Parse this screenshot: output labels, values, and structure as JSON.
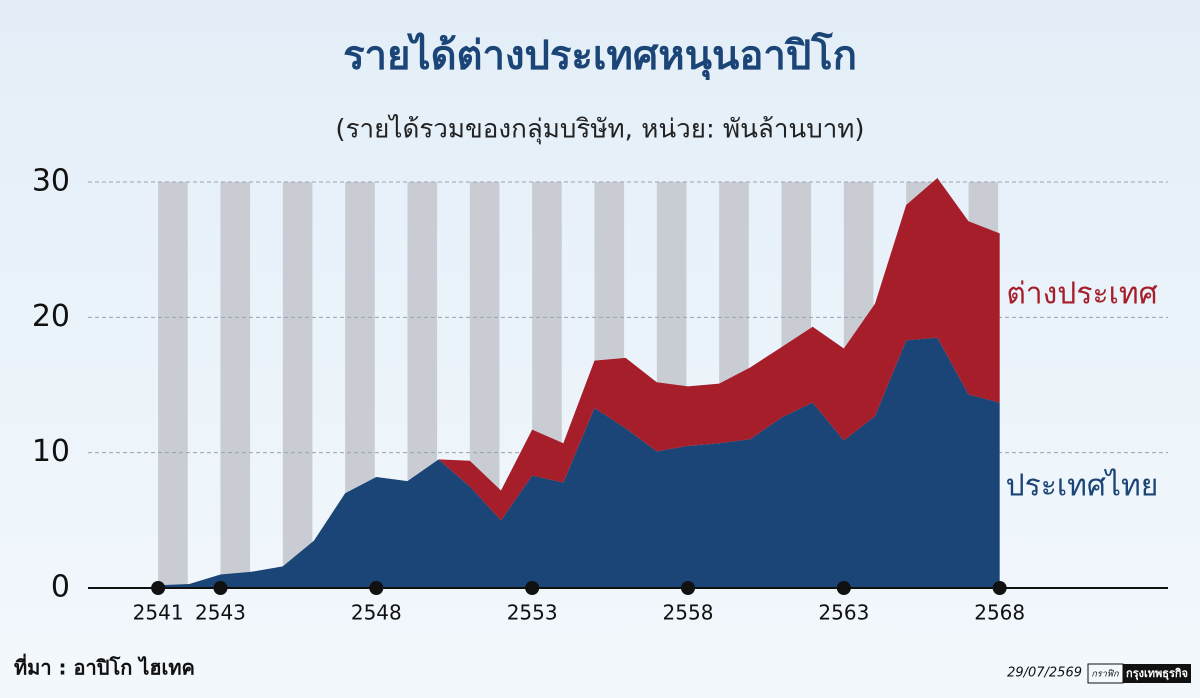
{
  "chart_data": {
    "type": "stacked_area",
    "title": "รายได้ต่างประเทศหนุนอาปิโก",
    "subtitle": "(รายได้รวมของกลุ่มบริษัท, หน่วย: พันล้านบาท)",
    "x": [
      2541,
      2542,
      2543,
      2544,
      2545,
      2546,
      2547,
      2548,
      2549,
      2550,
      2551,
      2552,
      2553,
      2554,
      2555,
      2556,
      2557,
      2558,
      2559,
      2560,
      2561,
      2562,
      2563,
      2564,
      2565,
      2566,
      2567,
      2568
    ],
    "series": [
      {
        "name": "ประเทศไทย",
        "color": "#1b4577",
        "values": [
          0.2,
          0.3,
          1.0,
          1.2,
          1.6,
          3.5,
          7.0,
          8.2,
          7.9,
          9.5,
          7.5,
          5.0,
          8.3,
          7.8,
          13.3,
          11.8,
          10.1,
          10.5,
          10.7,
          11.0,
          12.6,
          13.7,
          10.9,
          12.7,
          18.3,
          18.5,
          14.3,
          13.7
        ]
      },
      {
        "name": "ต่างประเทศ",
        "color": "#a51e2a",
        "values": [
          0,
          0,
          0,
          0,
          0,
          0,
          0,
          0,
          0,
          0,
          1.9,
          2.2,
          3.4,
          2.9,
          3.5,
          5.2,
          5.1,
          4.4,
          4.4,
          5.3,
          5.2,
          5.6,
          6.8,
          8.3,
          10.0,
          11.8,
          12.8,
          12.5
        ]
      }
    ],
    "xlim": [
      2538.75,
      2573.4
    ],
    "xticks": [
      2541,
      2543,
      2548,
      2553,
      2558,
      2563,
      2568
    ],
    "ylim": [
      0,
      30
    ],
    "yticks": [
      0,
      10,
      20,
      30
    ],
    "grid": true,
    "source": "ที่มา : อาปิโก ไฮเทค",
    "date": "29/07/2569",
    "credit": [
      "กราฟิก",
      "กรุงเทพธุรกิจ"
    ]
  }
}
